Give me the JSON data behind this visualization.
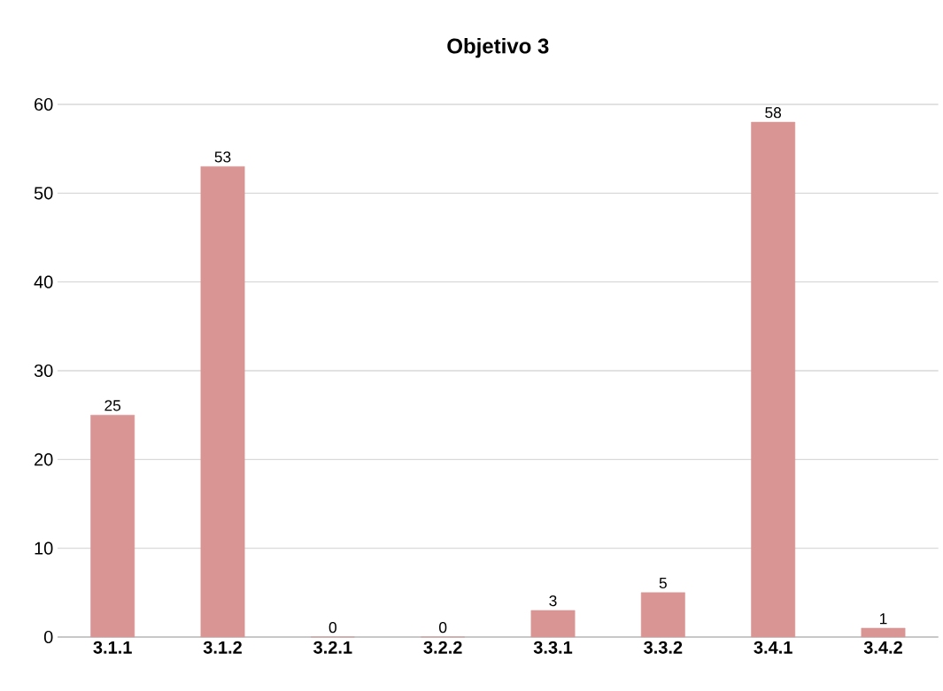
{
  "chart_data": {
    "type": "bar",
    "title": "Objetivo 3",
    "categories": [
      "3.1.1",
      "3.1.2",
      "3.2.1",
      "3.2.2",
      "3.3.1",
      "3.3.2",
      "3.4.1",
      "3.4.2"
    ],
    "values": [
      25,
      53,
      0,
      0,
      3,
      5,
      58,
      1
    ],
    "color": "#d99594",
    "ylim": [
      0,
      60
    ],
    "yticks": [
      0,
      10,
      20,
      30,
      40,
      50,
      60
    ],
    "grid": "y",
    "data_labels": true
  }
}
